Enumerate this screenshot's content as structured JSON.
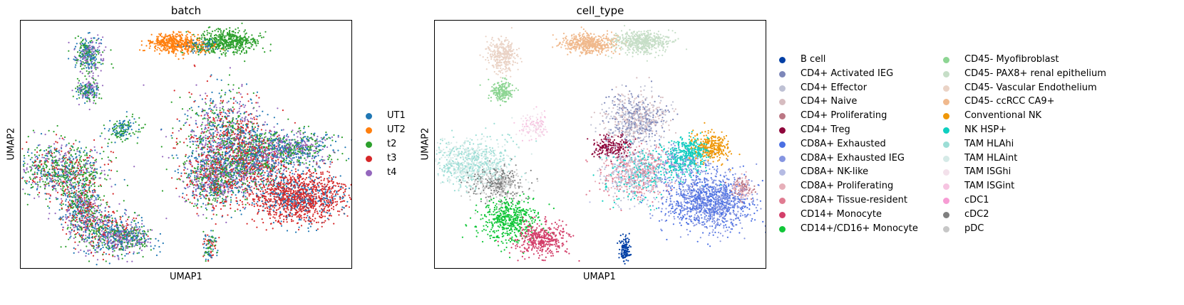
{
  "chart_data": [
    {
      "type": "scatter",
      "title": "batch",
      "xlabel": "UMAP1",
      "ylabel": "UMAP2",
      "legend_placement": "right",
      "ticks": "none",
      "series": [
        {
          "name": "UT1",
          "color": "#1f77b4"
        },
        {
          "name": "UT2",
          "color": "#ff7f0e"
        },
        {
          "name": "t2",
          "color": "#2ca02c"
        },
        {
          "name": "t3",
          "color": "#d62728"
        },
        {
          "name": "t4",
          "color": "#9467bd"
        }
      ]
    },
    {
      "type": "scatter",
      "title": "cell_type",
      "xlabel": "UMAP1",
      "ylabel": "UMAP2",
      "legend_placement": "right",
      "ticks": "none",
      "series": [
        {
          "name": "B cell",
          "color": "#023fa5"
        },
        {
          "name": "CD4+ Activated IEG",
          "color": "#7d87b9"
        },
        {
          "name": "CD4+ Effector",
          "color": "#bec1d4"
        },
        {
          "name": "CD4+ Naive",
          "color": "#d6bcc0"
        },
        {
          "name": "CD4+ Proliferating",
          "color": "#bb7784"
        },
        {
          "name": "CD4+ Treg",
          "color": "#8e063b"
        },
        {
          "name": "CD8A+ Exhausted",
          "color": "#4a6fe3"
        },
        {
          "name": "CD8A+ Exhausted IEG",
          "color": "#8595e1"
        },
        {
          "name": "CD8A+ NK-like",
          "color": "#b5bbe3"
        },
        {
          "name": "CD8A+ Proliferating",
          "color": "#e6afb9"
        },
        {
          "name": "CD8A+ Tissue-resident",
          "color": "#e07b91"
        },
        {
          "name": "CD14+ Monocyte",
          "color": "#d33f6a"
        },
        {
          "name": "CD14+/CD16+ Monocyte",
          "color": "#11c638"
        },
        {
          "name": "CD45- Myofibroblast",
          "color": "#8dd593"
        },
        {
          "name": "CD45- PAX8+ renal epithelium",
          "color": "#c6dec7"
        },
        {
          "name": "CD45- Vascular Endothelium",
          "color": "#ead3c6"
        },
        {
          "name": "CD45- ccRCC CA9+",
          "color": "#f0b98d"
        },
        {
          "name": "Conventional NK",
          "color": "#ef9708"
        },
        {
          "name": "NK HSP+",
          "color": "#0fcfc0"
        },
        {
          "name": "TAM HLAhi",
          "color": "#9cded6"
        },
        {
          "name": "TAM HLAint",
          "color": "#d5eae7"
        },
        {
          "name": "TAM ISGhi",
          "color": "#f3e1eb"
        },
        {
          "name": "TAM ISGint",
          "color": "#f6c4e1"
        },
        {
          "name": "cDC1",
          "color": "#f79cd4"
        },
        {
          "name": "cDC2",
          "color": "#7f7f7f"
        },
        {
          "name": "pDC",
          "color": "#c7c7c7"
        }
      ]
    }
  ]
}
